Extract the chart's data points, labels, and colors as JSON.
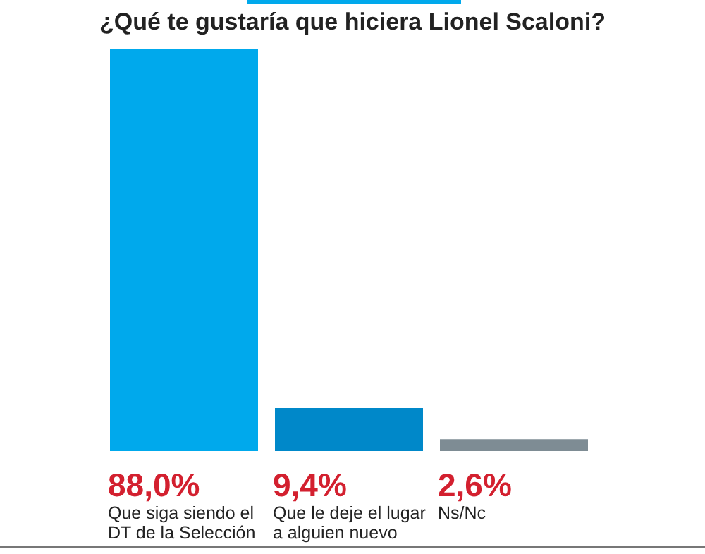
{
  "chart_data": {
    "type": "bar",
    "title": "¿Qué te gustaría que hiciera Lionel Scaloni?",
    "categories": [
      "Que siga siendo el DT de la Selección",
      "Que le deje el lugar a alguien nuevo",
      "Ns/Nc"
    ],
    "values": [
      88.0,
      9.4,
      2.6
    ],
    "colors": [
      "#00a9ec",
      "#0088c9",
      "#7e8c94"
    ],
    "value_labels": [
      "88,0%",
      "9,4%",
      "2,6%"
    ]
  }
}
